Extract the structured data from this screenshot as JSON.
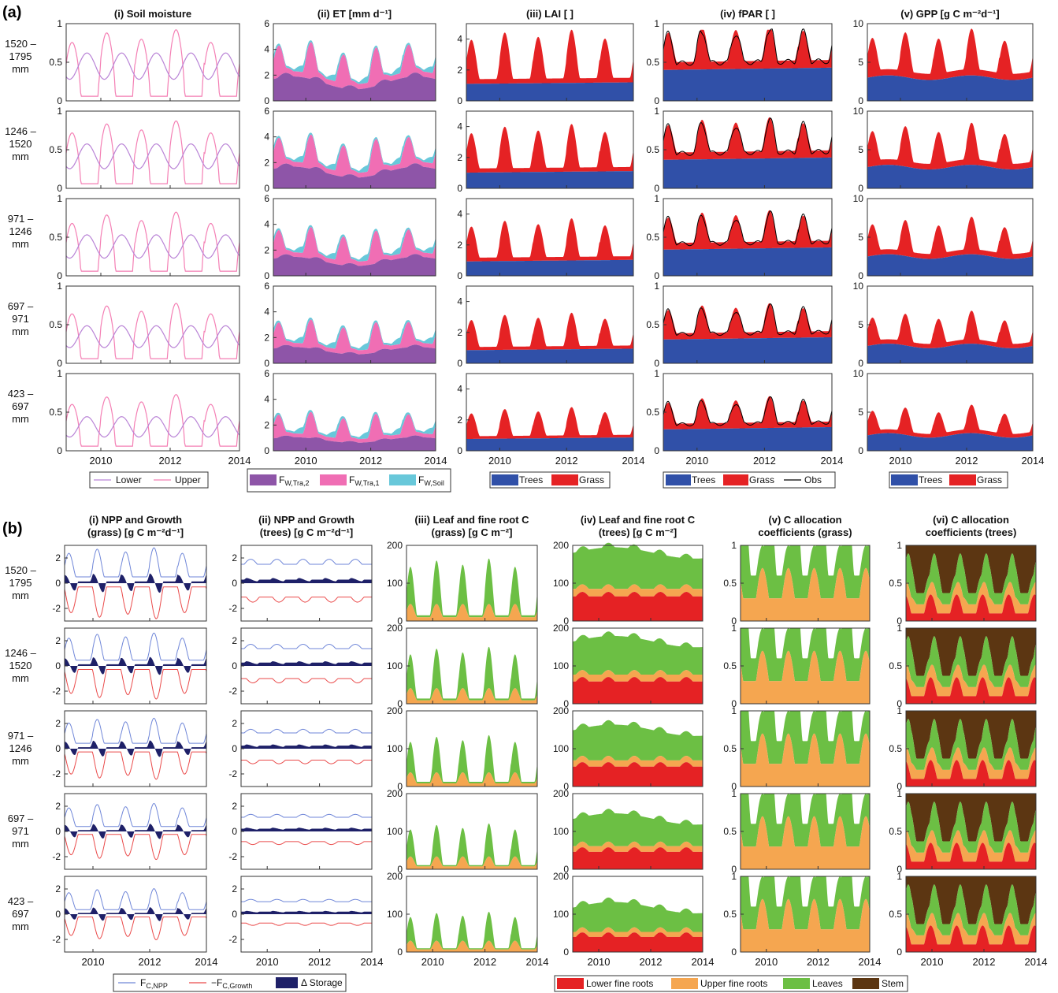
{
  "panel_labels": [
    "(a)",
    "(b)"
  ],
  "rows": [
    "1520 –\n1795\nmm",
    "1246 –\n1520\nmm",
    "971 –\n1246\nmm",
    "697 –\n971\nmm",
    "423 –\n697\nmm"
  ],
  "colors": {
    "lower": "#b983d6",
    "upper": "#f47fb4",
    "tra2": "#8e55a8",
    "tra1": "#f06eb4",
    "soil": "#68c8da",
    "trees": "#3050a8",
    "grass": "#e52224",
    "obs": "#000000",
    "npp": "#6f86d8",
    "growth": "#ea4a4a",
    "storage": "#1e2068",
    "lower_roots": "#e52224",
    "upper_roots": "#f5a650",
    "leaves": "#6cbf44",
    "stem": "#5c3612"
  },
  "years": [
    "2010",
    "2012",
    "2014"
  ],
  "chart_data": [
    {
      "id": "a1",
      "type": "line",
      "title": "(i) Soil moisture",
      "x": [
        2009,
        2014
      ],
      "ylim": [
        0,
        1
      ],
      "yticks": [
        "0",
        "0.5",
        "1"
      ],
      "series": [
        {
          "name": "Lower",
          "color": "#b983d6"
        },
        {
          "name": "Upper",
          "color": "#f47fb4"
        }
      ],
      "legend": [
        "Lower",
        "Upper"
      ]
    },
    {
      "id": "a2",
      "type": "area",
      "title": "(ii) ET [mm d⁻¹]",
      "x": [
        2009,
        2014
      ],
      "ylim": [
        0,
        6
      ],
      "yticks": [
        "0",
        "2",
        "4",
        "6"
      ],
      "series": [
        {
          "name": "F_W,Tra,2",
          "color": "#8e55a8"
        },
        {
          "name": "F_W,Tra,1",
          "color": "#f06eb4"
        },
        {
          "name": "F_W,Soil",
          "color": "#68c8da"
        }
      ],
      "legend": [
        "F",
        "F",
        "F"
      ],
      "legend_sub": [
        "W,Tra,2",
        "W,Tra,1",
        "W,Soil"
      ]
    },
    {
      "id": "a3",
      "type": "area",
      "title": "(iii) LAI [ ]",
      "x": [
        2009,
        2014
      ],
      "ylim": [
        0,
        5
      ],
      "yticks": [
        "0",
        "2",
        "4"
      ],
      "series": [
        {
          "name": "Trees",
          "color": "#3050a8"
        },
        {
          "name": "Grass",
          "color": "#e52224"
        }
      ],
      "legend": [
        "Trees",
        "Grass"
      ]
    },
    {
      "id": "a4",
      "type": "area",
      "title": "(iv) fPAR [ ]",
      "x": [
        2009,
        2014
      ],
      "ylim": [
        0,
        1
      ],
      "yticks": [
        "0",
        "0.5",
        "1"
      ],
      "series": [
        {
          "name": "Trees",
          "color": "#3050a8"
        },
        {
          "name": "Grass",
          "color": "#e52224"
        },
        {
          "name": "Obs",
          "color": "#000000"
        }
      ],
      "legend": [
        "Trees",
        "Grass",
        "Obs"
      ]
    },
    {
      "id": "a5",
      "type": "area",
      "title": "(v) GPP [g C m⁻²d⁻¹]",
      "x": [
        2009,
        2014
      ],
      "ylim": [
        0,
        10
      ],
      "yticks": [
        "0",
        "5",
        "10"
      ],
      "series": [
        {
          "name": "Trees",
          "color": "#3050a8"
        },
        {
          "name": "Grass",
          "color": "#e52224"
        }
      ],
      "legend": [
        "Trees",
        "Grass"
      ]
    },
    {
      "id": "b1",
      "type": "line",
      "title": [
        "(i) NPP and Growth",
        "(grass) [g C m⁻²d⁻¹]"
      ],
      "x": [
        2009,
        2014
      ],
      "ylim": [
        -3,
        3
      ],
      "yticks": [
        "-2",
        "0",
        "2"
      ],
      "series": [
        {
          "name": "F_C,NPP",
          "color": "#6f86d8"
        },
        {
          "name": "-F_C,Growth",
          "color": "#ea4a4a"
        },
        {
          "name": "Δ Storage",
          "color": "#1e2068"
        }
      ],
      "legend": [
        "F",
        "−F",
        "Δ Storage"
      ],
      "legend_sub": [
        "C,NPP",
        "C,Growth",
        ""
      ]
    },
    {
      "id": "b2",
      "type": "line",
      "title": [
        "(ii) NPP and Growth",
        "(trees) [g C m⁻²d⁻¹]"
      ],
      "x": [
        2009,
        2014
      ],
      "ylim": [
        -3,
        3
      ],
      "yticks": [
        "-2",
        "0",
        "2"
      ]
    },
    {
      "id": "b3",
      "type": "area",
      "title": [
        "(iii) Leaf and fine root C",
        "(grass) [g C m⁻²]"
      ],
      "x": [
        2009,
        2014
      ],
      "ylim": [
        0,
        200
      ],
      "yticks": [
        "0",
        "100",
        "200"
      ],
      "series": [
        {
          "name": "Upper fine roots",
          "color": "#f5a650"
        },
        {
          "name": "Leaves",
          "color": "#6cbf44"
        }
      ]
    },
    {
      "id": "b4",
      "type": "area",
      "title": [
        "(iv) Leaf and fine root C",
        "(trees) [g C m⁻²]"
      ],
      "x": [
        2009,
        2014
      ],
      "ylim": [
        0,
        200
      ],
      "yticks": [
        "0",
        "100",
        "200"
      ],
      "series": [
        {
          "name": "Lower fine roots",
          "color": "#e52224"
        },
        {
          "name": "Upper fine roots",
          "color": "#f5a650"
        },
        {
          "name": "Leaves",
          "color": "#6cbf44"
        }
      ],
      "legend": [
        "Lower fine roots",
        "Upper fine roots",
        "Leaves",
        "Stem"
      ]
    },
    {
      "id": "b5",
      "type": "area",
      "title": [
        "(v) C allocation",
        "coefficients (grass)"
      ],
      "x": [
        2009,
        2014
      ],
      "ylim": [
        0,
        1
      ],
      "yticks": [
        "0",
        "0.5",
        "1"
      ],
      "series": [
        {
          "name": "Upper fine roots",
          "color": "#f5a650"
        },
        {
          "name": "Leaves",
          "color": "#6cbf44"
        }
      ]
    },
    {
      "id": "b6",
      "type": "area",
      "title": [
        "(vi) C allocation",
        "coefficients (trees)"
      ],
      "x": [
        2009,
        2014
      ],
      "ylim": [
        0,
        1
      ],
      "yticks": [
        "0",
        "0.5",
        "1"
      ],
      "series": [
        {
          "name": "Lower fine roots",
          "color": "#e52224"
        },
        {
          "name": "Upper fine roots",
          "color": "#f5a650"
        },
        {
          "name": "Leaves",
          "color": "#6cbf44"
        },
        {
          "name": "Stem",
          "color": "#5c3612"
        }
      ]
    }
  ]
}
